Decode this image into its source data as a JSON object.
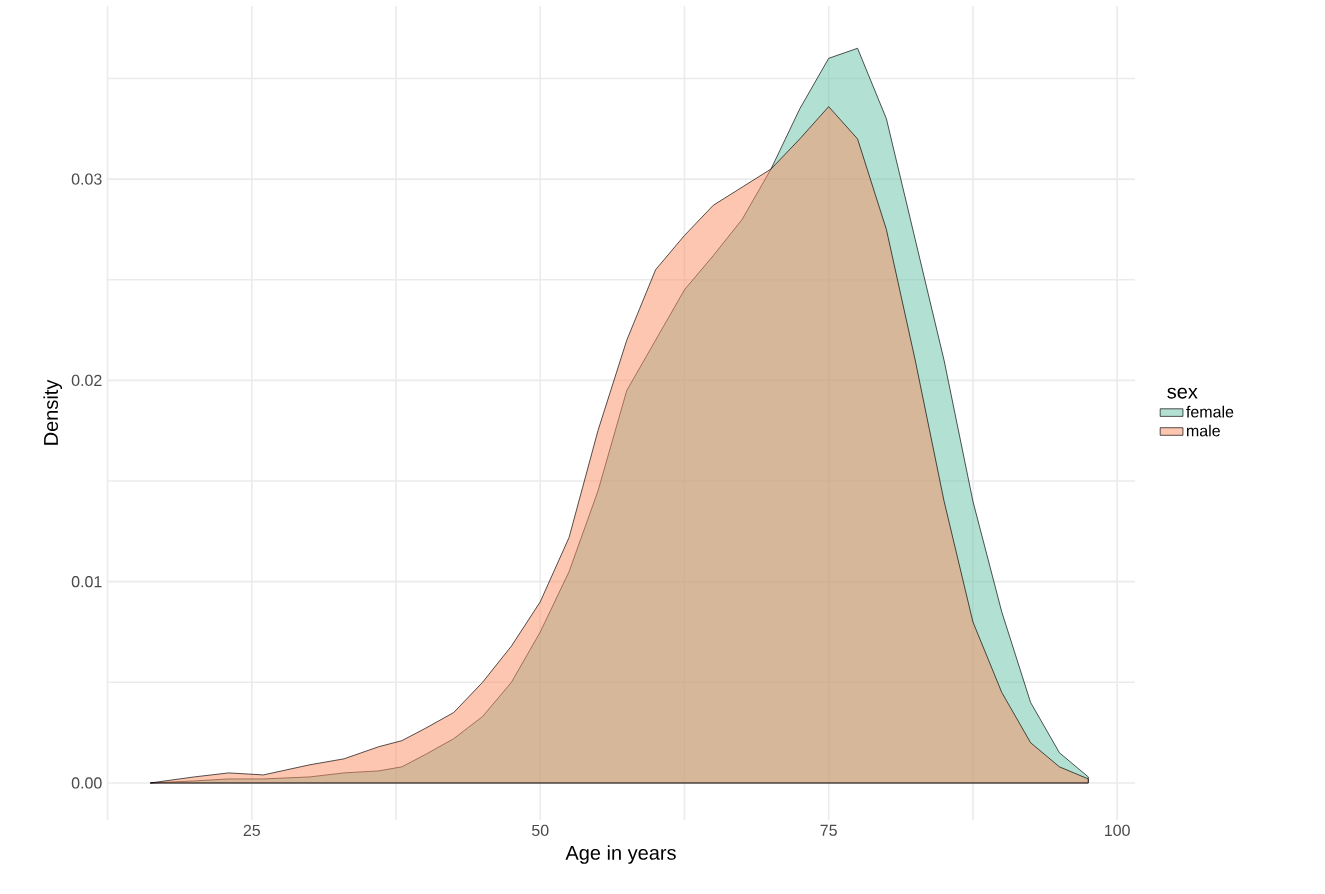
{
  "chart_data": {
    "type": "area",
    "xlabel": "Age in years",
    "ylabel": "Density",
    "legend_title": "sex",
    "legend": "right",
    "grid": true,
    "xlim": [
      12.45,
      101.55
    ],
    "ylim": [
      -0.00184,
      0.0386
    ],
    "xticks": [
      {
        "value": 12.5,
        "label": null
      },
      25,
      {
        "value": 37.5,
        "label": null
      },
      50,
      {
        "value": 62.5,
        "label": null
      },
      75,
      {
        "value": 87.5,
        "label": null
      },
      100
    ],
    "yticks": [
      {
        "value": 0,
        "label": "0.00"
      },
      {
        "value": 0.005,
        "label": null
      },
      0.01,
      {
        "value": 0.015,
        "label": null
      },
      0.02,
      {
        "value": 0.025,
        "label": null
      },
      0.03,
      {
        "value": 0.035,
        "label": null
      }
    ],
    "x": [
      16.2,
      20,
      23,
      26,
      30,
      33,
      36,
      38,
      40,
      42.5,
      45,
      47.5,
      50,
      52.5,
      55,
      57.5,
      60,
      62.5,
      65,
      67.5,
      70,
      72.5,
      75,
      77.5,
      80,
      82.5,
      85,
      87.5,
      90,
      92.5,
      95,
      97.5
    ],
    "series": [
      {
        "name": "female",
        "color": "#66c2a5",
        "values": [
          0,
          0.0001,
          0.0002,
          0.0002,
          0.0003,
          0.0005,
          0.0006,
          0.0008,
          0.0014,
          0.0022,
          0.0033,
          0.005,
          0.0075,
          0.0105,
          0.0145,
          0.0195,
          0.022,
          0.0245,
          0.0262,
          0.028,
          0.0305,
          0.0335,
          0.036,
          0.0365,
          0.033,
          0.027,
          0.021,
          0.014,
          0.0085,
          0.004,
          0.0015,
          0.0003
        ]
      },
      {
        "name": "male",
        "color": "#fc8d62",
        "values": [
          0,
          0.0003,
          0.0005,
          0.0004,
          0.0009,
          0.0012,
          0.0018,
          0.0021,
          0.0027,
          0.0035,
          0.005,
          0.0068,
          0.009,
          0.0122,
          0.0175,
          0.022,
          0.0255,
          0.0272,
          0.0287,
          0.0296,
          0.0305,
          0.032,
          0.0336,
          0.032,
          0.0275,
          0.021,
          0.014,
          0.008,
          0.0045,
          0.002,
          0.0008,
          0.0002
        ]
      }
    ]
  }
}
